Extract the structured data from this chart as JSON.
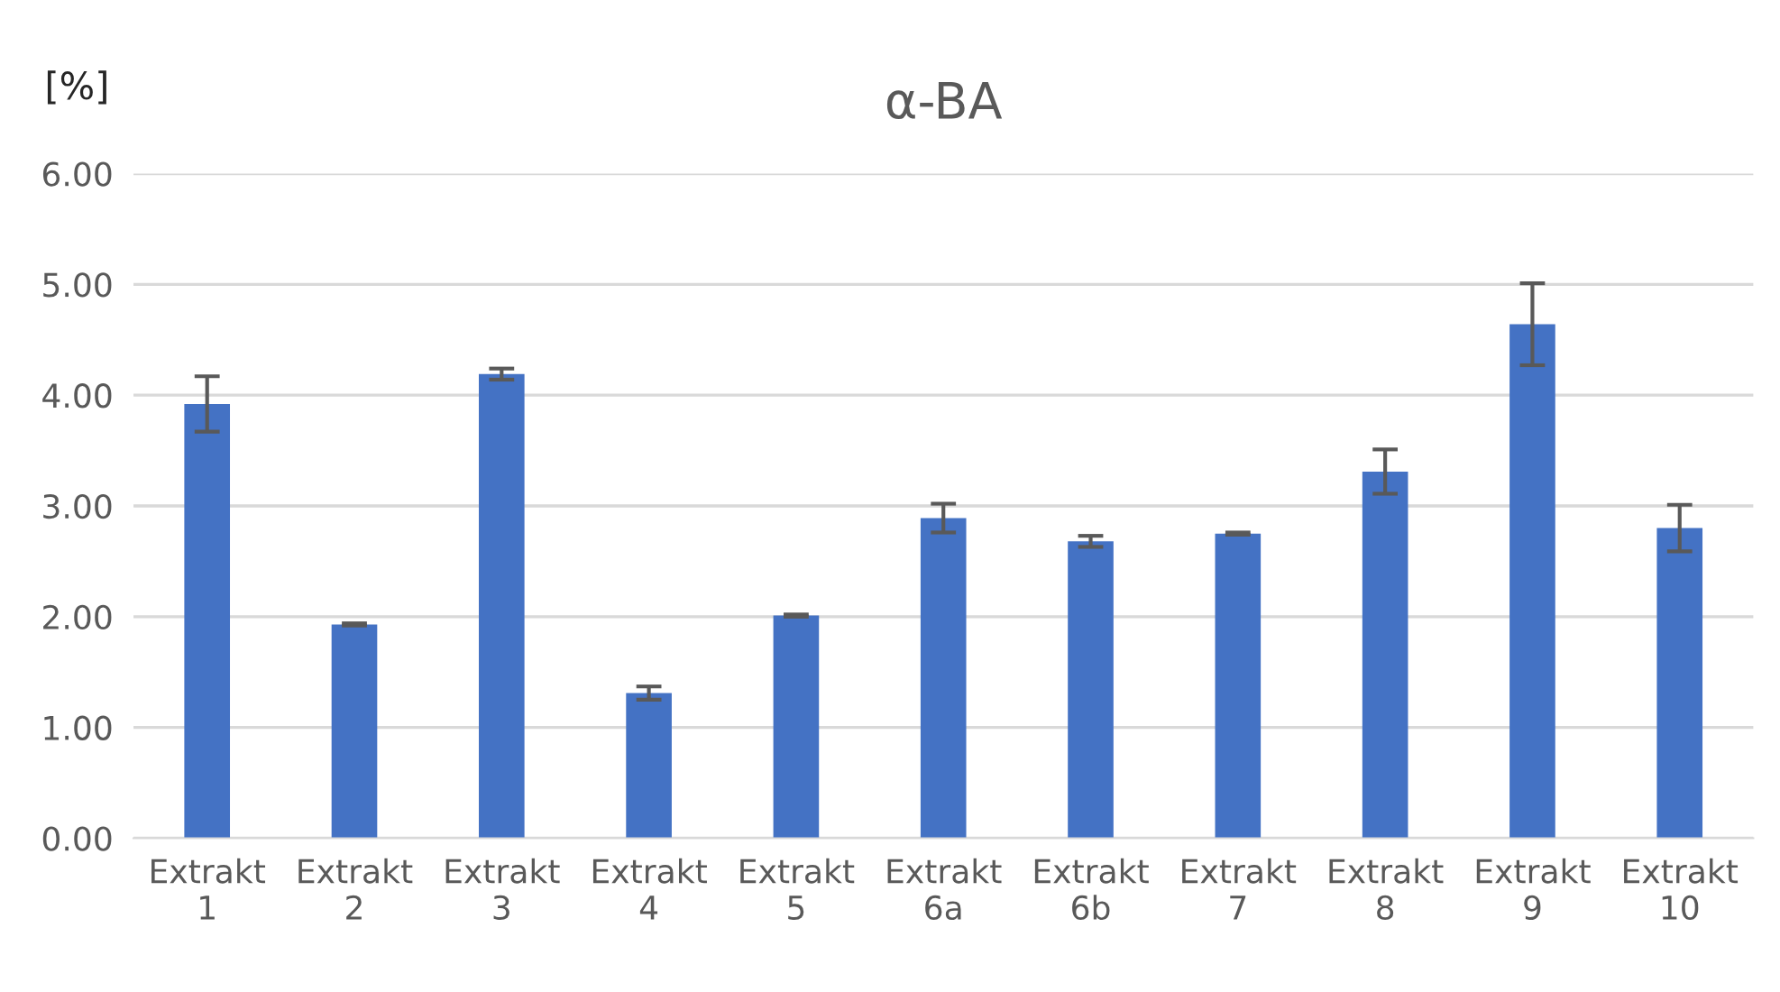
{
  "chart_data": {
    "type": "bar",
    "title": "α-BA",
    "ylabel": "[%]",
    "categories": [
      "Extrakt\n1",
      "Extrakt\n2",
      "Extrakt\n3",
      "Extrakt\n4",
      "Extrakt\n5",
      "Extrakt\n6a",
      "Extrakt\n6b",
      "Extrakt\n7",
      "Extrakt\n8",
      "Extrakt\n9",
      "Extrakt\n10"
    ],
    "values": [
      3.92,
      1.93,
      4.19,
      1.31,
      2.01,
      2.89,
      2.68,
      2.75,
      3.31,
      4.64,
      2.8
    ],
    "errors": [
      0.25,
      0.01,
      0.05,
      0.06,
      0.01,
      0.13,
      0.05,
      0.01,
      0.2,
      0.37,
      0.21
    ],
    "color": "#4472c4",
    "ylim": [
      0,
      6
    ],
    "yticks": [
      {
        "value": 0,
        "label": "0.00"
      },
      {
        "value": 1,
        "label": "1.00"
      },
      {
        "value": 2,
        "label": "2.00"
      },
      {
        "value": 3,
        "label": "3.00"
      },
      {
        "value": 4,
        "label": "4.00"
      },
      {
        "value": 5,
        "label": "5.00"
      },
      {
        "value": 6,
        "label": "6.00"
      }
    ],
    "grid": "y",
    "legend": false
  }
}
